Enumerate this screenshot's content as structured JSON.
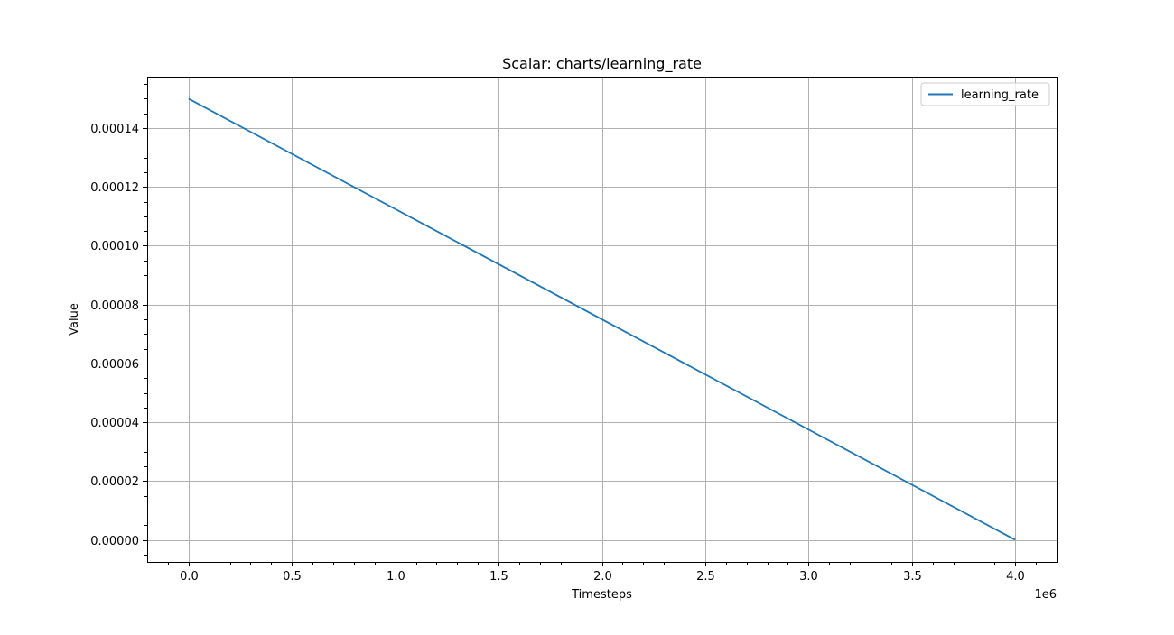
{
  "chart_data": {
    "type": "line",
    "title": "Scalar: charts/learning_rate",
    "xlabel": "Timesteps",
    "ylabel": "Value",
    "x_offset_label": "1e6",
    "xlim": [
      -0.2,
      4.2
    ],
    "ylim": [
      -7.5e-06,
      0.0001575
    ],
    "x_ticks": [
      0.0,
      0.5,
      1.0,
      1.5,
      2.0,
      2.5,
      3.0,
      3.5,
      4.0
    ],
    "x_tick_labels": [
      "0.0",
      "0.5",
      "1.0",
      "1.5",
      "2.0",
      "2.5",
      "3.0",
      "3.5",
      "4.0"
    ],
    "y_ticks": [
      0.0,
      2e-05,
      4e-05,
      6e-05,
      8e-05,
      0.0001,
      0.00012,
      0.00014
    ],
    "y_tick_labels": [
      "0.00000",
      "0.00002",
      "0.00004",
      "0.00006",
      "0.00008",
      "0.00010",
      "0.00012",
      "0.00014"
    ],
    "grid": true,
    "legend_position": "top-right",
    "series": [
      {
        "name": "learning_rate",
        "color": "#1f77b4",
        "x": [
          0.0,
          4.0
        ],
        "y": [
          0.00015,
          0.0
        ]
      }
    ]
  }
}
